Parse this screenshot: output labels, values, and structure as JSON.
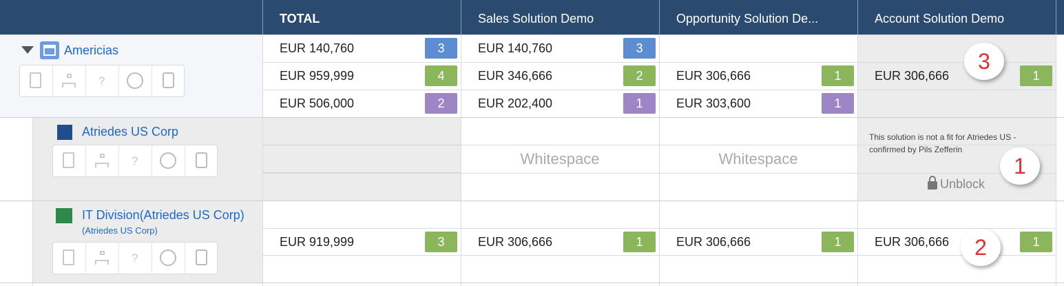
{
  "header": {
    "columns": [
      "TOTAL",
      "Sales Solution Demo",
      "Opportunity Solution De...",
      "Account Solution Demo"
    ]
  },
  "toolbar_help_icon": "?",
  "groups": [
    {
      "name": "Americias",
      "rows": [
        [
          {
            "amount": "EUR 140,760",
            "count": 3,
            "color": "#5b8dd0"
          },
          {
            "amount": "EUR 140,760",
            "count": 3,
            "color": "#5b8dd0"
          },
          null,
          null
        ],
        [
          {
            "amount": "EUR 959,999",
            "count": 4,
            "color": "#8bb65b"
          },
          {
            "amount": "EUR 346,666",
            "count": 2,
            "color": "#8bb65b"
          },
          {
            "amount": "EUR 306,666",
            "count": 1,
            "color": "#8bb65b"
          },
          {
            "amount": "EUR 306,666",
            "count": 1,
            "color": "#8bb65b"
          }
        ],
        [
          {
            "amount": "EUR 506,000",
            "count": 2,
            "color": "#9c86c6"
          },
          {
            "amount": "EUR 202,400",
            "count": 1,
            "color": "#9c86c6"
          },
          {
            "amount": "EUR 303,600",
            "count": 1,
            "color": "#9c86c6"
          },
          null
        ]
      ],
      "callout": 3
    },
    {
      "name": "Atriedes US Corp",
      "whitespace_label": "Whitespace",
      "blocked_note": "This solution is not a fit for Atriedes US - confirmed by Pils Zefferin",
      "unblock_label": "Unblock",
      "callout": 1
    },
    {
      "name": "IT Division(Atriedes US Corp)",
      "subtitle": "(Atriedes US Corp)",
      "rows": [
        [
          null,
          null,
          null,
          null
        ],
        [
          {
            "amount": "EUR 919,999",
            "count": 3,
            "color": "#8bb65b"
          },
          {
            "amount": "EUR 306,666",
            "count": 1,
            "color": "#8bb65b"
          },
          {
            "amount": "EUR 306,666",
            "count": 1,
            "color": "#8bb65b"
          },
          {
            "amount": "EUR 306,666",
            "count": 1,
            "color": "#8bb65b"
          }
        ],
        [
          null,
          null,
          null,
          null
        ]
      ],
      "callout": 2
    }
  ]
}
